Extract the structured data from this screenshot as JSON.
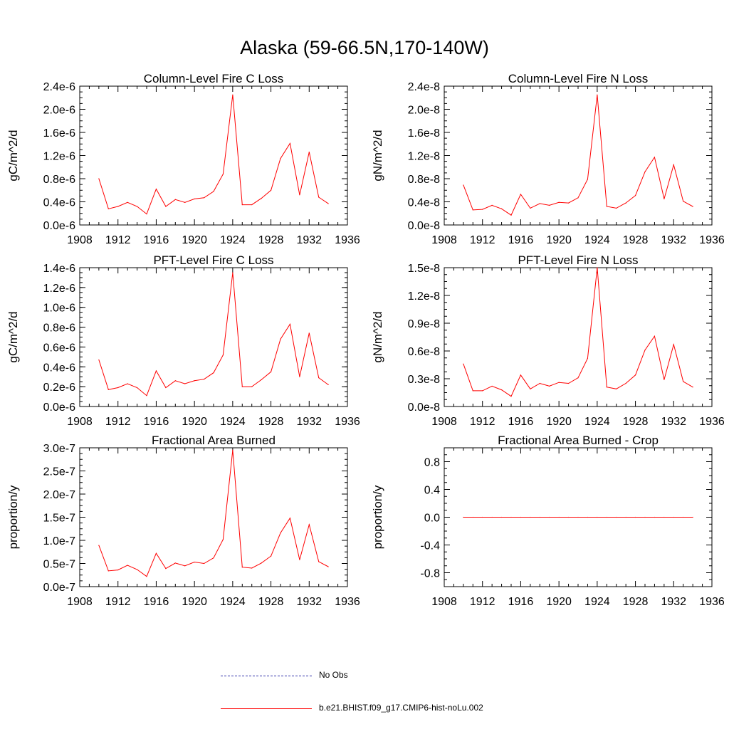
{
  "title": "Alaska (59-66.5N,170-140W)",
  "colors": {
    "model": "#ff0000",
    "obs": "#3333aa",
    "axis": "#000000"
  },
  "legend": [
    {
      "label": "No Obs",
      "style": "dashed",
      "color": "#3333aa"
    },
    {
      "label": "b.e21.BHIST.f09_g17.CMIP6-hist-noLu.002",
      "style": "solid",
      "color": "#ff0000"
    }
  ],
  "chart_data": [
    {
      "type": "line",
      "title": "Column-Level Fire C Loss",
      "ylabel": "gC/m^2/d",
      "xlim": [
        1908,
        1936
      ],
      "xticks": [
        "1908",
        "1912",
        "1916",
        "1920",
        "1924",
        "1928",
        "1932",
        "1936"
      ],
      "ylim": [
        0,
        2.4e-06
      ],
      "yticks": [
        0,
        4e-07,
        8e-07,
        1.2e-06,
        1.6e-06,
        2e-06,
        2.4e-06
      ],
      "yticklabels": [
        "0.0e-6",
        "0.4e-6",
        "0.8e-6",
        "1.2e-6",
        "1.6e-6",
        "2.0e-6",
        "2.4e-6"
      ],
      "x": [
        1910,
        1911,
        1912,
        1913,
        1914,
        1915,
        1916,
        1917,
        1918,
        1919,
        1920,
        1921,
        1922,
        1923,
        1924,
        1925,
        1926,
        1927,
        1928,
        1929,
        1930,
        1931,
        1932,
        1933,
        1934
      ],
      "series": [
        {
          "name": "b.e21.BHIST.f09_g17.CMIP6-hist-noLu.002",
          "values": [
            8e-07,
            2.8e-07,
            3.2e-07,
            3.9e-07,
            3.2e-07,
            1.9e-07,
            6.2e-07,
            3.2e-07,
            4.4e-07,
            3.9e-07,
            4.5e-07,
            4.7e-07,
            5.8e-07,
            8.8e-07,
            2.25e-06,
            3.5e-07,
            3.5e-07,
            4.6e-07,
            6e-07,
            1.15e-06,
            1.41e-06,
            5.2e-07,
            1.26e-06,
            4.8e-07,
            3.7e-07
          ]
        }
      ]
    },
    {
      "type": "line",
      "title": "Column-Level Fire N Loss",
      "ylabel": "gN/m^2/d",
      "xlim": [
        1908,
        1936
      ],
      "xticks": [
        "1908",
        "1912",
        "1916",
        "1920",
        "1924",
        "1928",
        "1932",
        "1936"
      ],
      "ylim": [
        0,
        2.4e-08
      ],
      "yticks": [
        0,
        4e-09,
        8e-09,
        1.2e-08,
        1.6e-08,
        2e-08,
        2.4e-08
      ],
      "yticklabels": [
        "0.0e-8",
        "0.4e-8",
        "0.8e-8",
        "1.2e-8",
        "1.6e-8",
        "2.0e-8",
        "2.4e-8"
      ],
      "x": [
        1910,
        1911,
        1912,
        1913,
        1914,
        1915,
        1916,
        1917,
        1918,
        1919,
        1920,
        1921,
        1922,
        1923,
        1924,
        1925,
        1926,
        1927,
        1928,
        1929,
        1930,
        1931,
        1932,
        1933,
        1934
      ],
      "series": [
        {
          "name": "b.e21.BHIST.f09_g17.CMIP6-hist-noLu.002",
          "values": [
            6.9e-09,
            2.6e-09,
            2.7e-09,
            3.4e-09,
            2.8e-09,
            1.7e-09,
            5.3e-09,
            2.9e-09,
            3.7e-09,
            3.4e-09,
            3.9e-09,
            3.8e-09,
            4.7e-09,
            7.9e-09,
            2.25e-08,
            3.2e-09,
            2.9e-09,
            3.8e-09,
            5.1e-09,
            9.2e-09,
            1.17e-08,
            4.5e-09,
            1.04e-08,
            4.1e-09,
            3.2e-09
          ]
        }
      ]
    },
    {
      "type": "line",
      "title": "PFT-Level Fire C Loss",
      "ylabel": "gC/m^2/d",
      "xlim": [
        1908,
        1936
      ],
      "xticks": [
        "1908",
        "1912",
        "1916",
        "1920",
        "1924",
        "1928",
        "1932",
        "1936"
      ],
      "ylim": [
        0,
        1.4e-06
      ],
      "yticks": [
        0,
        2e-07,
        4e-07,
        6e-07,
        8e-07,
        1e-06,
        1.2e-06,
        1.4e-06
      ],
      "yticklabels": [
        "0.0e-6",
        "0.2e-6",
        "0.4e-6",
        "0.6e-6",
        "0.8e-6",
        "1.0e-6",
        "1.2e-6",
        "1.4e-6"
      ],
      "x": [
        1910,
        1911,
        1912,
        1913,
        1914,
        1915,
        1916,
        1917,
        1918,
        1919,
        1920,
        1921,
        1922,
        1923,
        1924,
        1925,
        1926,
        1927,
        1928,
        1929,
        1930,
        1931,
        1932,
        1933,
        1934
      ],
      "series": [
        {
          "name": "b.e21.BHIST.f09_g17.CMIP6-hist-noLu.002",
          "values": [
            4.7e-07,
            1.7e-07,
            1.9e-07,
            2.3e-07,
            1.9e-07,
            1.1e-07,
            3.6e-07,
            1.9e-07,
            2.6e-07,
            2.3e-07,
            2.6e-07,
            2.75e-07,
            3.4e-07,
            5.2e-07,
            1.35e-06,
            2e-07,
            2e-07,
            2.7e-07,
            3.5e-07,
            6.8e-07,
            8.3e-07,
            3e-07,
            7.4e-07,
            2.9e-07,
            2.2e-07
          ]
        }
      ]
    },
    {
      "type": "line",
      "title": "PFT-Level Fire N Loss",
      "ylabel": "gN/m^2/d",
      "xlim": [
        1908,
        1936
      ],
      "xticks": [
        "1908",
        "1912",
        "1916",
        "1920",
        "1924",
        "1928",
        "1932",
        "1936"
      ],
      "ylim": [
        0,
        1.5e-08
      ],
      "yticks": [
        0,
        3e-09,
        6e-09,
        9e-09,
        1.2e-08,
        1.5e-08
      ],
      "yticklabels": [
        "0.0e-8",
        "0.3e-8",
        "0.6e-8",
        "0.9e-8",
        "1.2e-8",
        "1.5e-8"
      ],
      "x": [
        1910,
        1911,
        1912,
        1913,
        1914,
        1915,
        1916,
        1917,
        1918,
        1919,
        1920,
        1921,
        1922,
        1923,
        1924,
        1925,
        1926,
        1927,
        1928,
        1929,
        1930,
        1931,
        1932,
        1933,
        1934
      ],
      "series": [
        {
          "name": "b.e21.BHIST.f09_g17.CMIP6-hist-noLu.002",
          "values": [
            4.6e-09,
            1.7e-09,
            1.7e-09,
            2.2e-09,
            1.8e-09,
            1.1e-09,
            3.4e-09,
            1.9e-09,
            2.5e-09,
            2.2e-09,
            2.6e-09,
            2.5e-09,
            3.1e-09,
            5.2e-09,
            1.5e-08,
            2.1e-09,
            1.9e-09,
            2.5e-09,
            3.4e-09,
            6.1e-09,
            7.6e-09,
            2.9e-09,
            6.7e-09,
            2.7e-09,
            2.1e-09
          ]
        }
      ]
    },
    {
      "type": "line",
      "title": "Fractional Area Burned",
      "ylabel": "proportion/y",
      "xlim": [
        1908,
        1936
      ],
      "xticks": [
        "1908",
        "1912",
        "1916",
        "1920",
        "1924",
        "1928",
        "1932",
        "1936"
      ],
      "ylim": [
        0,
        3e-07
      ],
      "yticks": [
        0,
        5e-08,
        1e-07,
        1.5e-07,
        2e-07,
        2.5e-07,
        3e-07
      ],
      "yticklabels": [
        "0.0e-7",
        "0.5e-7",
        "1.0e-7",
        "1.5e-7",
        "2.0e-7",
        "2.5e-7",
        "3.0e-7"
      ],
      "x": [
        1910,
        1911,
        1912,
        1913,
        1914,
        1915,
        1916,
        1917,
        1918,
        1919,
        1920,
        1921,
        1922,
        1923,
        1924,
        1925,
        1926,
        1927,
        1928,
        1929,
        1930,
        1931,
        1932,
        1933,
        1934
      ],
      "series": [
        {
          "name": "b.e21.BHIST.f09_g17.CMIP6-hist-noLu.002",
          "values": [
            8.9e-08,
            3.4e-08,
            3.6e-08,
            4.6e-08,
            3.7e-08,
            2.2e-08,
            7.2e-08,
            3.9e-08,
            5.1e-08,
            4.5e-08,
            5.3e-08,
            5e-08,
            6.2e-08,
            1.02e-07,
            2.95e-07,
            4.2e-08,
            4e-08,
            5.1e-08,
            6.6e-08,
            1.16e-07,
            1.48e-07,
            5.8e-08,
            1.34e-07,
            5.4e-08,
            4.3e-08
          ]
        }
      ]
    },
    {
      "type": "line",
      "title": "Fractional Area Burned - Crop",
      "ylabel": "proportion/y",
      "xlim": [
        1908,
        1936
      ],
      "xticks": [
        "1908",
        "1912",
        "1916",
        "1920",
        "1924",
        "1928",
        "1932",
        "1936"
      ],
      "ylim": [
        -1.0,
        1.0
      ],
      "yticks": [
        -0.8,
        -0.4,
        0.0,
        0.4,
        0.8
      ],
      "yticklabels": [
        "-0.8",
        "-0.4",
        "0.0",
        "0.4",
        "0.8"
      ],
      "x": [
        1910,
        1911,
        1912,
        1913,
        1914,
        1915,
        1916,
        1917,
        1918,
        1919,
        1920,
        1921,
        1922,
        1923,
        1924,
        1925,
        1926,
        1927,
        1928,
        1929,
        1930,
        1931,
        1932,
        1933,
        1934
      ],
      "series": [
        {
          "name": "b.e21.BHIST.f09_g17.CMIP6-hist-noLu.002",
          "values": [
            0,
            0,
            0,
            0,
            0,
            0,
            0,
            0,
            0,
            0,
            0,
            0,
            0,
            0,
            0,
            0,
            0,
            0,
            0,
            0,
            0,
            0,
            0,
            0,
            0
          ]
        }
      ]
    }
  ]
}
